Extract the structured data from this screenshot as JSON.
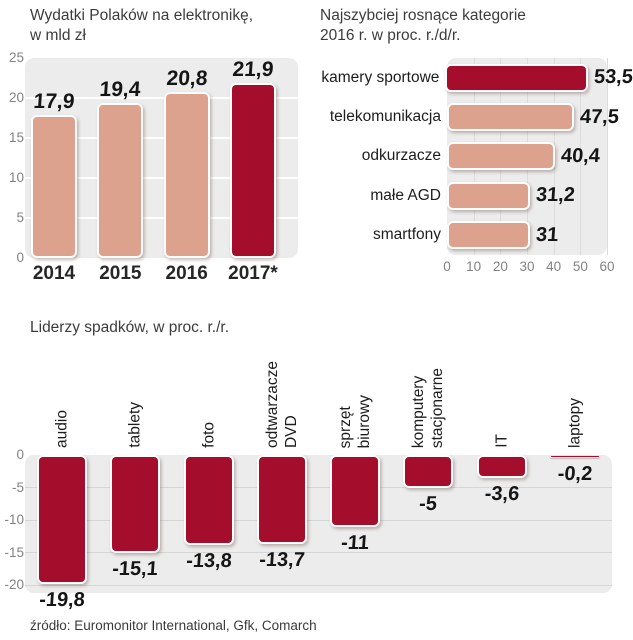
{
  "page": {
    "source": "źródło: Euromonitor International, Gfk, Comarch"
  },
  "colors": {
    "accent": "#a50d2d",
    "salmon": "#dda28d",
    "plot_bg": "#ececec",
    "grid_white": "#ffffff",
    "grid_gray": "#d6d6d6",
    "tick_text": "#828282",
    "title_text": "#3c3c3c"
  },
  "chart_data": [
    {
      "id": "spending",
      "type": "bar",
      "title": "Wydatki Polaków na elektronikę,",
      "subtitle": "w mld zł",
      "categories": [
        "2014",
        "2015",
        "2016",
        "2017*"
      ],
      "values": [
        17.9,
        19.4,
        20.8,
        21.9
      ],
      "value_labels": [
        "17,9",
        "19,4",
        "20,8",
        "21,9"
      ],
      "ylim": [
        0,
        25
      ],
      "yticks": [
        0,
        5,
        10,
        15,
        20,
        25
      ],
      "bar_colors": [
        "salmon",
        "salmon",
        "salmon",
        "accent"
      ],
      "grid": true,
      "legend": false
    },
    {
      "id": "growth",
      "type": "bar-horizontal",
      "title": "Najszybciej rosnące kategorie",
      "subtitle": "2016 r. w proc. r./d/r.",
      "categories": [
        "kamery sportowe",
        "telekomunikacja",
        "odkurzacze",
        "małe AGD",
        "smartfony"
      ],
      "values": [
        53.5,
        47.5,
        40.4,
        31.2,
        31
      ],
      "value_labels": [
        "53,5",
        "47,5",
        "40,4",
        "31,2",
        "31"
      ],
      "xlim": [
        0,
        60
      ],
      "xticks": [
        0,
        10,
        20,
        30,
        40,
        50,
        60
      ],
      "bar_colors": [
        "accent",
        "salmon",
        "salmon",
        "salmon",
        "salmon"
      ],
      "grid": true,
      "legend": false
    },
    {
      "id": "declines",
      "type": "bar",
      "title": "Liderzy spadków, w proc. r./r.",
      "categories": [
        "audio",
        "tablety",
        "foto",
        "odtwarzacze\nDVD",
        "sprzęt\nbiurowy",
        "komputery\nstacjonarne",
        "IT",
        "laptopy"
      ],
      "values": [
        -19.8,
        -15.1,
        -13.8,
        -13.7,
        -11,
        -5,
        -3.6,
        -0.2
      ],
      "value_labels": [
        "-19,8",
        "-15,1",
        "-13,8",
        "-13,7",
        "-11",
        "-5",
        "-3,6",
        "-0,2"
      ],
      "ylim": [
        -20,
        0
      ],
      "yticks": [
        0,
        -5,
        -10,
        -15,
        -20
      ],
      "bar_colors": [
        "accent",
        "accent",
        "accent",
        "accent",
        "accent",
        "accent",
        "accent",
        "accent"
      ],
      "grid": true,
      "legend": false
    }
  ]
}
